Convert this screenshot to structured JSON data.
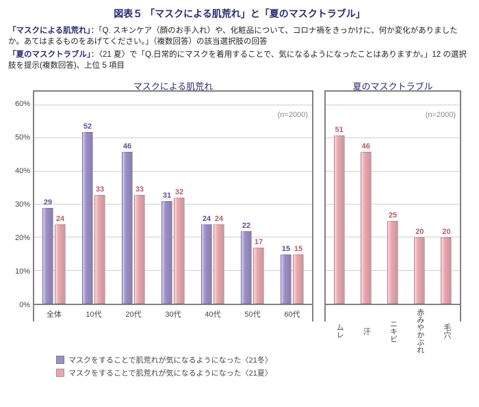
{
  "title": "図表５ 「マスクによる肌荒れ」と「夏のマスクトラブル」",
  "descriptions": [
    {
      "label": "「マスクによる肌荒れ」",
      "body": "：「Q. スキンケア（顔のお手入れ）や、化粧品について、コロナ禍をきっかけに、何か変化がありましたか。あてはまるものをあげてください。」（複数回答）の該当選択肢の回答"
    },
    {
      "label": "「夏のマスクトラブル」",
      "body": "：〈21 夏〉で「Q.日常的にマスクを着用することで、気になるようになったことはありますか。」12 の選択肢を提示(複数回答)、上位 5 項目"
    }
  ],
  "chart": {
    "ymax": 60,
    "ystep": 10,
    "ysuffix": "%",
    "gridline_color": "#cfcfcf",
    "axis_color": "#808080",
    "series": [
      {
        "name": "マスクをすることで肌荒れが気になるようになった〈21冬〉",
        "color": "#9b8fc8",
        "label_color": "#5a4ca0"
      },
      {
        "name": "マスクをすることで肌荒れが気になるようになった〈21夏〉",
        "color": "#e8a8b0",
        "label_color": "#b85a66"
      }
    ],
    "panels": [
      {
        "subtitle": "マスクによる肌荒れ",
        "n_label": "(n=2000)",
        "categories": [
          "全体",
          "10代",
          "20代",
          "30代",
          "40代",
          "50代",
          "60代"
        ],
        "vertical_labels": false,
        "series_values": [
          [
            29,
            52,
            46,
            31,
            24,
            22,
            15
          ],
          [
            24,
            33,
            33,
            32,
            24,
            17,
            15
          ]
        ]
      },
      {
        "subtitle": "夏のマスクトラブル",
        "n_label": "(n=2000)",
        "categories": [
          "ムレ",
          "汗",
          "ニキビ",
          "赤みやかぶれ",
          "毛穴"
        ],
        "vertical_labels": true,
        "series_values": [
          [],
          [
            51,
            46,
            25,
            20,
            20
          ]
        ]
      }
    ]
  }
}
